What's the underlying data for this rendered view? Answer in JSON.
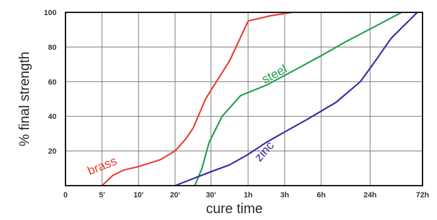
{
  "chart_data": {
    "type": "line",
    "title": "",
    "xlabel": "cure time",
    "ylabel": "% final strength",
    "x_ticks": [
      "0",
      "5'",
      "10'",
      "20'",
      "30'",
      "1h",
      "3h",
      "6h",
      "24h",
      "72h"
    ],
    "y_ticks": [
      "20",
      "40",
      "60",
      "80",
      "100"
    ],
    "ylim": [
      0,
      100
    ],
    "grid": true,
    "series": [
      {
        "name": "brass",
        "color": "#e8403a",
        "x": [
          1,
          1.3,
          1.6,
          2,
          2.6,
          3,
          3.3,
          3.5,
          3.85,
          4,
          4.5,
          5,
          5.6,
          6.2
        ],
        "y": [
          0,
          6,
          9,
          11,
          15,
          20,
          27,
          33,
          50,
          55,
          72,
          95,
          98,
          100
        ]
      },
      {
        "name": "steel",
        "color": "#20a050",
        "x": [
          3.55,
          3.75,
          3.95,
          4.3,
          4.8,
          5.5,
          6.3,
          7,
          7.5,
          8.1,
          8.6
        ],
        "y": [
          0,
          10,
          25,
          40,
          52,
          58,
          67,
          75,
          83,
          92,
          100
        ]
      },
      {
        "name": "zinc",
        "color": "#3a2aa8",
        "x": [
          3,
          3.5,
          4,
          4.5,
          5,
          5.5,
          6,
          6.6,
          7.3,
          7.8,
          8.1,
          8.4,
          8.9
        ],
        "y": [
          0,
          4,
          8,
          12,
          18,
          25,
          31,
          38,
          48,
          60,
          72,
          85,
          100
        ]
      }
    ]
  }
}
